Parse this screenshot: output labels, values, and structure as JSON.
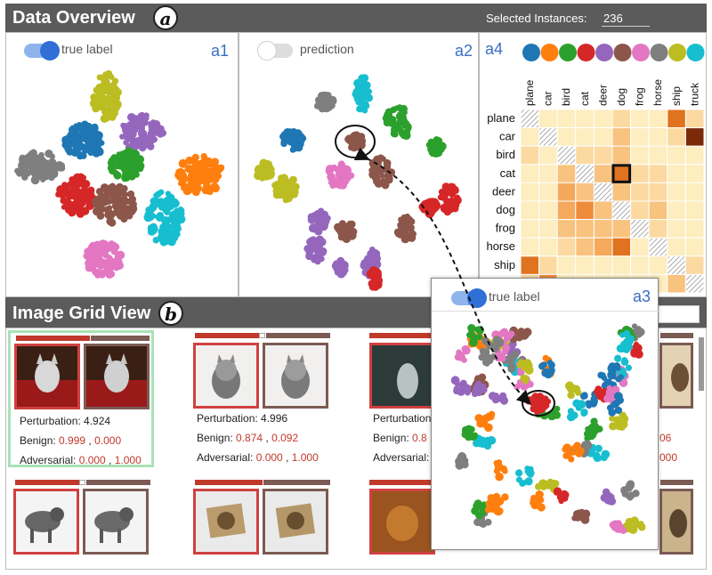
{
  "overview": {
    "title": "Data Overview",
    "section_letter": "a",
    "selected_label": "Selected Instances:",
    "selected_value": "236"
  },
  "panel_a1": {
    "tag": "a1",
    "toggle_label": "true label",
    "toggle_on": true
  },
  "panel_a2": {
    "tag": "a2",
    "toggle_label": "prediction",
    "toggle_on": false
  },
  "panel_a3": {
    "tag": "a3",
    "toggle_label": "true label",
    "toggle_on": true
  },
  "panel_a4": {
    "tag": "a4",
    "classes": [
      "plane",
      "car",
      "bird",
      "cat",
      "deer",
      "dog",
      "frog",
      "horse",
      "ship",
      "truck"
    ],
    "class_colors": [
      "#1f77b4",
      "#ff7f0e",
      "#2ca02c",
      "#d62728",
      "#9467bd",
      "#8c564b",
      "#e377c2",
      "#7f7f7f",
      "#bcbd22",
      "#17becf"
    ],
    "highlight": {
      "row": "cat",
      "col": "dog"
    }
  },
  "gridview": {
    "title": "Image Grid View",
    "section_letter": "b",
    "cards": [
      {
        "perturbation": "Perturbation: 4.924",
        "benign_label": "Benign:",
        "benign_a": "0.999",
        "benign_b": "0.000",
        "adv_label": "Adversarial:",
        "adv_a": "0.000",
        "adv_b": "1.000",
        "selected": true,
        "bar_fill": 0.56
      },
      {
        "perturbation": "Perturbation: 4.996",
        "benign_label": "Benign:",
        "benign_a": "0.874",
        "benign_b": "0.092",
        "adv_label": "Adversarial:",
        "adv_a": "0.000",
        "adv_b": "1.000",
        "selected": false,
        "bar_fill": 0.48
      },
      {
        "perturbation": "Perturbation:",
        "benign_label": "Benign:",
        "benign_a": "0.8",
        "benign_b": "",
        "adv_label": "Adversarial:",
        "adv_a": "",
        "adv_b": "",
        "selected": false,
        "bar_fill": 0.5
      },
      {
        "perturbation": "",
        "benign_label": "",
        "benign_a": "",
        "benign_b": "06",
        "adv_label": "",
        "adv_a": "",
        "adv_b": "000",
        "selected": false,
        "bar_fill": 0.5
      }
    ]
  }
}
